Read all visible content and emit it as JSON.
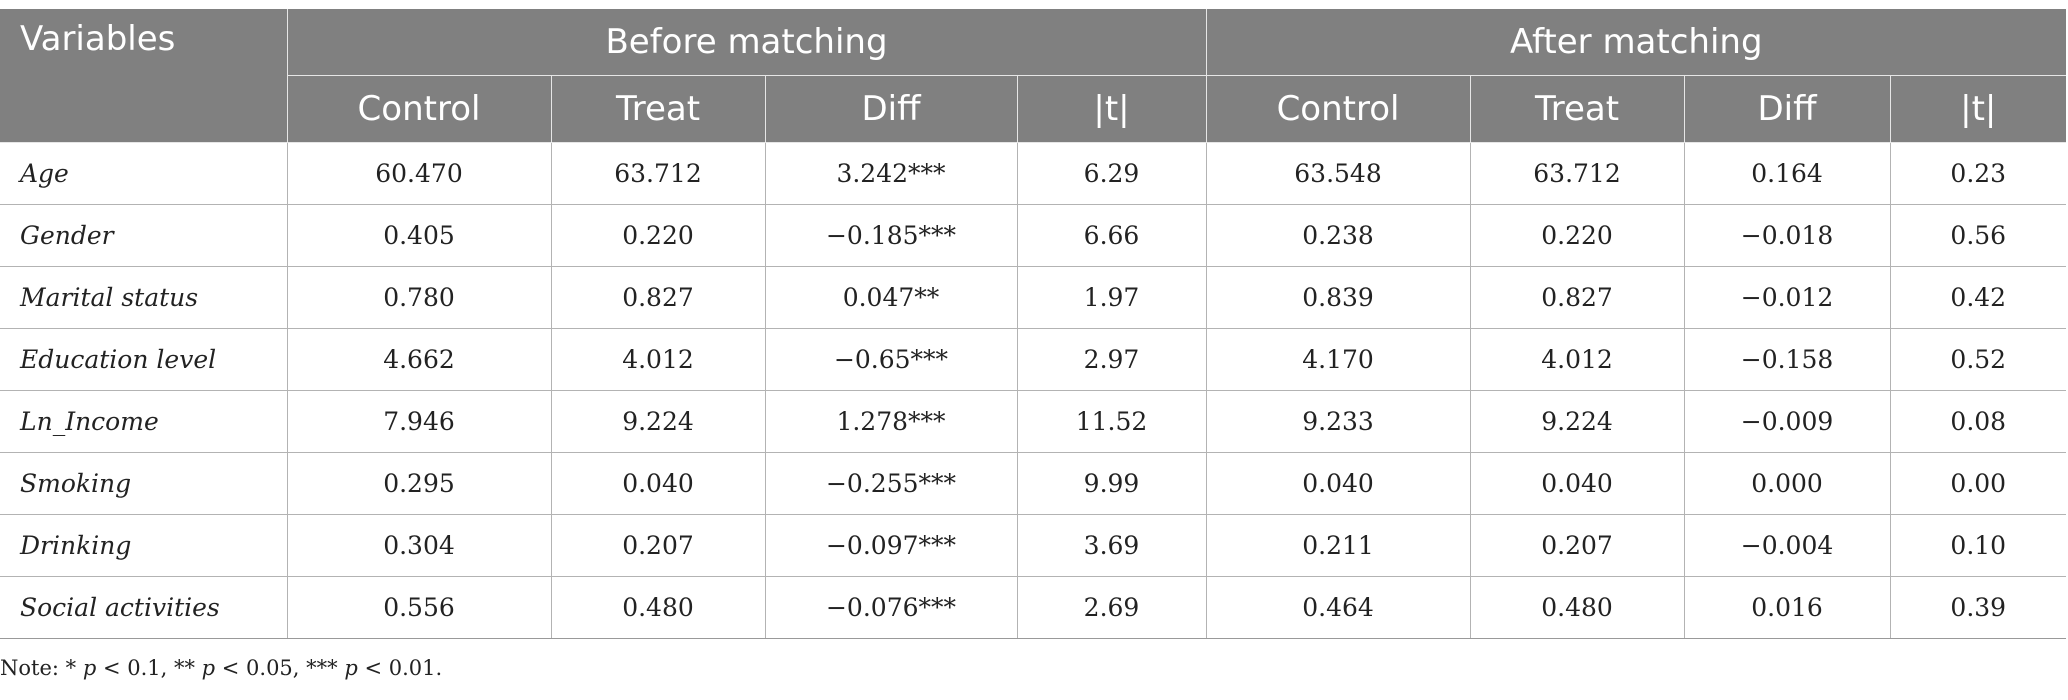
{
  "header": {
    "variables_label": "Variables",
    "groups": [
      {
        "label": "Before matching"
      },
      {
        "label": "After matching"
      }
    ],
    "subcolumns": [
      "Control",
      "Treat",
      "Diff",
      "|t|",
      "Control",
      "Treat",
      "Diff",
      "|t|"
    ]
  },
  "rows": [
    {
      "name": "Age",
      "values": [
        "60.470",
        "63.712",
        "3.242***",
        "6.29",
        "63.548",
        "63.712",
        "0.164",
        "0.23"
      ]
    },
    {
      "name": "Gender",
      "values": [
        "0.405",
        "0.220",
        "−0.185***",
        "6.66",
        "0.238",
        "0.220",
        "−0.018",
        "0.56"
      ]
    },
    {
      "name": "Marital status",
      "values": [
        "0.780",
        "0.827",
        "0.047**",
        "1.97",
        "0.839",
        "0.827",
        "−0.012",
        "0.42"
      ]
    },
    {
      "name": "Education level",
      "values": [
        "4.662",
        "4.012",
        "−0.65***",
        "2.97",
        "4.170",
        "4.012",
        "−0.158",
        "0.52"
      ]
    },
    {
      "name": "Ln_Income",
      "values": [
        "7.946",
        "9.224",
        "1.278***",
        "11.52",
        "9.233",
        "9.224",
        "−0.009",
        "0.08"
      ]
    },
    {
      "name": "Smoking",
      "values": [
        "0.295",
        "0.040",
        "−0.255***",
        "9.99",
        "0.040",
        "0.040",
        "0.000",
        "0.00"
      ]
    },
    {
      "name": "Drinking",
      "values": [
        "0.304",
        "0.207",
        "−0.097***",
        "3.69",
        "0.211",
        "0.207",
        "−0.004",
        "0.10"
      ]
    },
    {
      "name": "Social activities",
      "values": [
        "0.556",
        "0.480",
        "−0.076***",
        "2.69",
        "0.464",
        "0.480",
        "0.016",
        "0.39"
      ]
    }
  ],
  "note": {
    "prefix": "Note: * ",
    "p1": "p",
    "t1": " < 0.1, ** ",
    "p2": "p",
    "t2": " < 0.05, *** ",
    "p3": "p",
    "t3": " < 0.01."
  },
  "colors": {
    "header_bg": "#808080",
    "header_text": "#ffffff",
    "grid": "#b3b3b3"
  }
}
